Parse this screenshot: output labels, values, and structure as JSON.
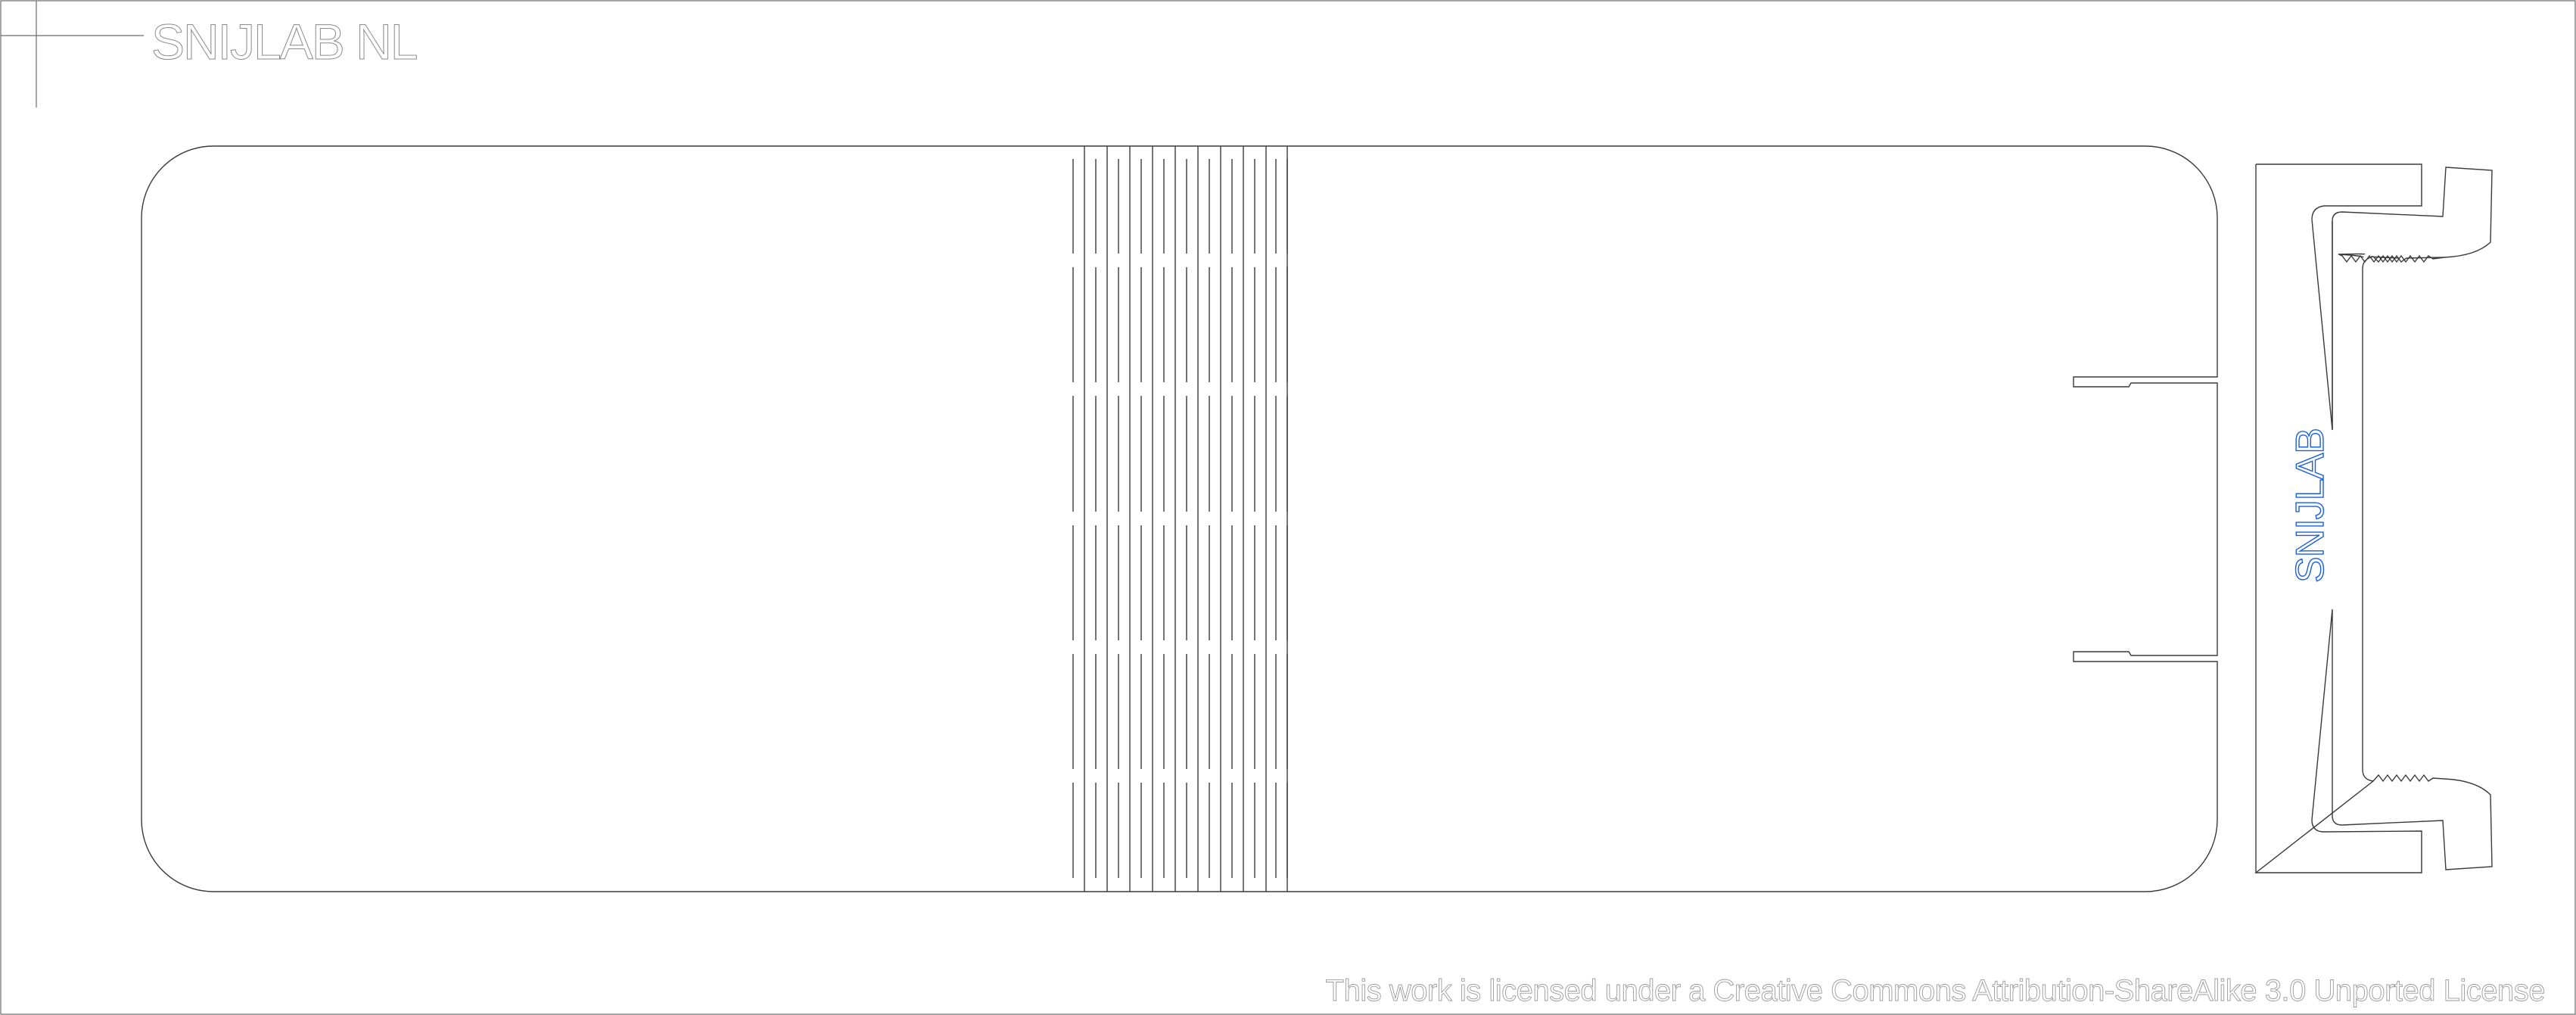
{
  "brand": {
    "header_label": "SNIJLAB NL",
    "engraving_label": "SNIJLAB",
    "engraving_color": "#1a5fe0"
  },
  "license": {
    "text": "This work is licensed under a Creative Commons Attribution-ShareAlike 3.0 Unported License"
  },
  "colors": {
    "cut_line": "#3a3a3a",
    "frame_line": "#6a6a6a",
    "faint_text": "#9a9a9a"
  }
}
